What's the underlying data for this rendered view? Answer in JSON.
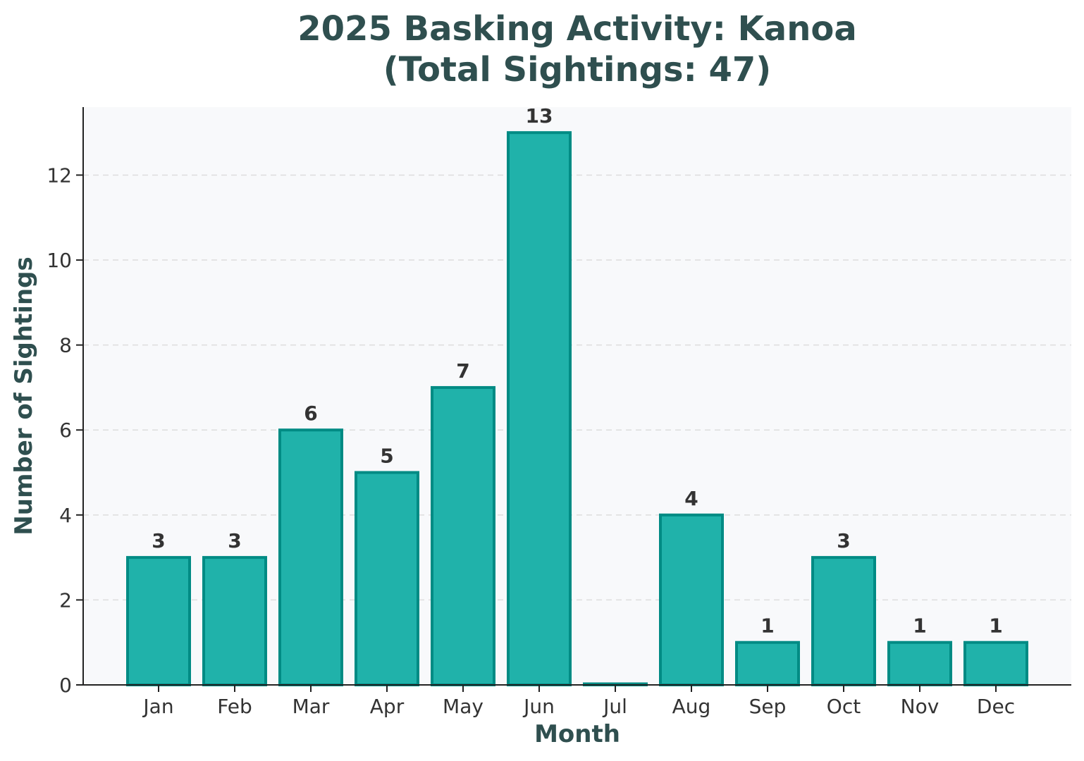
{
  "chart_data": {
    "type": "bar",
    "title": "2025 Basking Activity: Kanoa",
    "subtitle": "(Total Sightings: 47)",
    "xlabel": "Month",
    "ylabel": "Number of Sightings",
    "categories": [
      "Jan",
      "Feb",
      "Mar",
      "Apr",
      "May",
      "Jun",
      "Jul",
      "Aug",
      "Sep",
      "Oct",
      "Nov",
      "Dec"
    ],
    "values": [
      3,
      3,
      6,
      5,
      7,
      13,
      0,
      4,
      1,
      3,
      1,
      1
    ],
    "data_labels": [
      "3",
      "3",
      "6",
      "5",
      "7",
      "13",
      "",
      "4",
      "1",
      "3",
      "1",
      "1"
    ],
    "ylim": [
      0,
      13.6
    ],
    "yticks": [
      0,
      2,
      4,
      6,
      8,
      10,
      12
    ],
    "grid": "y-dashed",
    "colors": {
      "bar_fill": "#20b2aa",
      "bar_edge": "#008b84",
      "plot_background": "#f8f9fb",
      "title": "#2f4f4f",
      "grid": "#dddddd"
    }
  }
}
